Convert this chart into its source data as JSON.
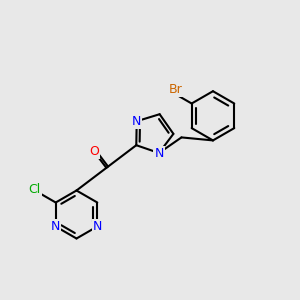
{
  "bg_color": "#e8e8e8",
  "bond_color": "#000000",
  "bond_width": 1.5,
  "atom_colors": {
    "N": "#0000ff",
    "O": "#ff0000",
    "Cl": "#00aa00",
    "Br": "#cc6600",
    "C": "#000000"
  },
  "font_size": 9
}
